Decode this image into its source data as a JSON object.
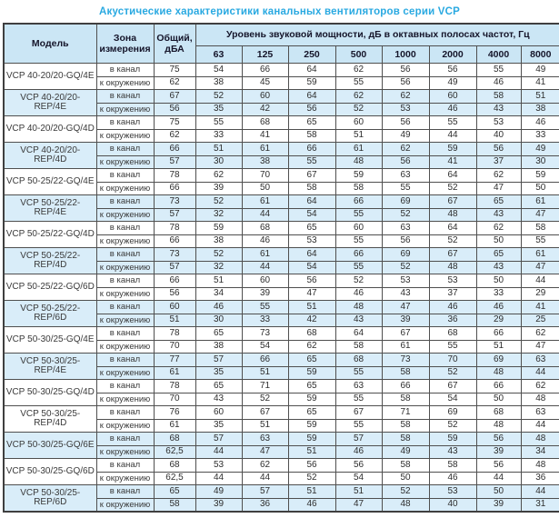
{
  "title": "Акустические характеристики канальных вентиляторов  серии VCP",
  "table": {
    "headers": {
      "model": "Модель",
      "zone": "Зона\nизмерения",
      "total": "Общий,\nдБА",
      "octave_group": "Уровень звуковой мощности, дБ в октавных полосах частот, Гц",
      "frequencies": [
        "63",
        "125",
        "250",
        "500",
        "1000",
        "2000",
        "4000",
        "8000"
      ]
    },
    "zone_labels": {
      "duct": "в канал",
      "ambient": "к окружению"
    },
    "colors": {
      "title_accent": "#29a9e1",
      "header_bg": "#cbe6f5",
      "shaded_row_bg": "#d9edf9",
      "border": "#4f4f4f"
    },
    "rows": [
      {
        "model": "VCP 40-20/20-GQ/4E",
        "shaded": false,
        "duct": {
          "total": "75",
          "bands": [
            54,
            66,
            64,
            62,
            56,
            56,
            55,
            49
          ]
        },
        "ambient": {
          "total": "62",
          "bands": [
            38,
            45,
            59,
            55,
            56,
            49,
            46,
            41
          ]
        }
      },
      {
        "model": "VCP 40-20/20-REP/4E",
        "shaded": true,
        "duct": {
          "total": "67",
          "bands": [
            52,
            60,
            64,
            62,
            62,
            60,
            58,
            51
          ]
        },
        "ambient": {
          "total": "56",
          "bands": [
            35,
            42,
            56,
            52,
            53,
            46,
            43,
            38
          ]
        }
      },
      {
        "model": "VCP 40-20/20-GQ/4D",
        "shaded": false,
        "duct": {
          "total": "75",
          "bands": [
            55,
            68,
            65,
            60,
            56,
            55,
            53,
            46
          ]
        },
        "ambient": {
          "total": "62",
          "bands": [
            33,
            41,
            58,
            51,
            49,
            44,
            40,
            33
          ]
        }
      },
      {
        "model": "VCP 40-20/20-REP/4D",
        "shaded": true,
        "duct": {
          "total": "66",
          "bands": [
            51,
            61,
            66,
            61,
            62,
            59,
            56,
            49
          ]
        },
        "ambient": {
          "total": "57",
          "bands": [
            30,
            38,
            55,
            48,
            56,
            41,
            37,
            30
          ]
        }
      },
      {
        "model": "VCP 50-25/22-GQ/4E",
        "shaded": false,
        "duct": {
          "total": "78",
          "bands": [
            62,
            70,
            67,
            59,
            63,
            64,
            62,
            59
          ]
        },
        "ambient": {
          "total": "66",
          "bands": [
            39,
            50,
            58,
            58,
            55,
            52,
            47,
            50
          ]
        }
      },
      {
        "model": "VCP 50-25/22-REP/4E",
        "shaded": true,
        "duct": {
          "total": "73",
          "bands": [
            52,
            61,
            64,
            66,
            69,
            67,
            65,
            61
          ]
        },
        "ambient": {
          "total": "57",
          "bands": [
            32,
            44,
            54,
            55,
            52,
            48,
            43,
            47
          ]
        }
      },
      {
        "model": "VCP 50-25/22-GQ/4D",
        "shaded": false,
        "duct": {
          "total": "78",
          "bands": [
            59,
            68,
            65,
            60,
            63,
            64,
            62,
            58
          ]
        },
        "ambient": {
          "total": "66",
          "bands": [
            38,
            46,
            53,
            55,
            56,
            52,
            50,
            55
          ]
        }
      },
      {
        "model": "VCP 50-25/22-REP/4D",
        "shaded": true,
        "duct": {
          "total": "73",
          "bands": [
            52,
            61,
            64,
            66,
            69,
            67,
            65,
            61
          ]
        },
        "ambient": {
          "total": "57",
          "bands": [
            32,
            44,
            54,
            55,
            52,
            48,
            43,
            47
          ]
        }
      },
      {
        "model": "VCP 50-25/22-GQ/6D",
        "shaded": false,
        "duct": {
          "total": "66",
          "bands": [
            51,
            60,
            56,
            52,
            53,
            53,
            50,
            44
          ]
        },
        "ambient": {
          "total": "56",
          "bands": [
            34,
            39,
            47,
            46,
            43,
            37,
            33,
            29
          ]
        }
      },
      {
        "model": "VCP 50-25/22-REP/6D",
        "shaded": true,
        "duct": {
          "total": "60",
          "bands": [
            46,
            55,
            51,
            48,
            47,
            46,
            46,
            41
          ]
        },
        "ambient": {
          "total": "51",
          "bands": [
            30,
            33,
            42,
            43,
            39,
            36,
            29,
            25
          ]
        }
      },
      {
        "model": "VCP 50-30/25-GQ/4E",
        "shaded": false,
        "duct": {
          "total": "78",
          "bands": [
            65,
            73,
            68,
            64,
            67,
            68,
            66,
            62
          ]
        },
        "ambient": {
          "total": "70",
          "bands": [
            38,
            54,
            62,
            58,
            61,
            55,
            51,
            47
          ]
        }
      },
      {
        "model": "VCP 50-30/25-REP/4E",
        "shaded": true,
        "duct": {
          "total": "77",
          "bands": [
            57,
            66,
            65,
            68,
            73,
            70,
            69,
            63
          ]
        },
        "ambient": {
          "total": "61",
          "bands": [
            35,
            51,
            59,
            55,
            58,
            52,
            48,
            44
          ]
        }
      },
      {
        "model": "VCP 50-30/25-GQ/4D",
        "shaded": false,
        "duct": {
          "total": "78",
          "bands": [
            65,
            71,
            65,
            63,
            66,
            67,
            66,
            62
          ]
        },
        "ambient": {
          "total": "70",
          "bands": [
            43,
            52,
            59,
            55,
            58,
            54,
            50,
            48
          ]
        }
      },
      {
        "model": "VCP 50-30/25-REP/4D",
        "shaded": false,
        "duct": {
          "total": "76",
          "bands": [
            60,
            67,
            65,
            67,
            71,
            69,
            68,
            63
          ]
        },
        "ambient": {
          "total": "61",
          "bands": [
            35,
            51,
            59,
            55,
            58,
            52,
            48,
            44
          ]
        }
      },
      {
        "model": "VCP 50-30/25-GQ/6E",
        "shaded": true,
        "duct": {
          "total": "68",
          "bands": [
            57,
            63,
            59,
            57,
            58,
            59,
            56,
            48
          ]
        },
        "ambient": {
          "total": "62,5",
          "bands": [
            44,
            47,
            51,
            46,
            49,
            43,
            39,
            34
          ]
        }
      },
      {
        "model": "VCP 50-30/25-GQ/6D",
        "shaded": false,
        "duct": {
          "total": "68",
          "bands": [
            53,
            62,
            56,
            56,
            58,
            58,
            56,
            48
          ]
        },
        "ambient": {
          "total": "62,5",
          "bands": [
            44,
            44,
            52,
            54,
            50,
            46,
            44,
            36
          ]
        }
      },
      {
        "model": "VCP 50-30/25-REP/6D",
        "shaded": true,
        "duct": {
          "total": "65",
          "bands": [
            49,
            57,
            51,
            51,
            52,
            53,
            50,
            44
          ]
        },
        "ambient": {
          "total": "58",
          "bands": [
            39,
            36,
            46,
            47,
            48,
            40,
            39,
            31
          ]
        }
      }
    ]
  }
}
